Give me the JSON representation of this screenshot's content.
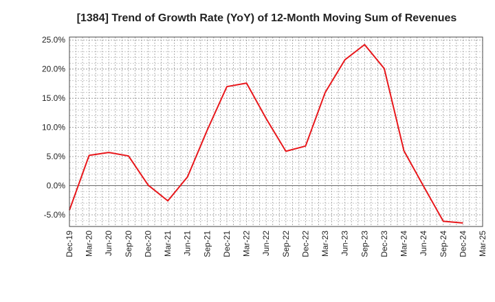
{
  "chart_data": {
    "type": "line",
    "title": "[1384]  Trend of Growth Rate (YoY) of 12-Month Moving Sum of Revenues",
    "xlabel": "",
    "ylabel": "",
    "categories": [
      "Dec-19",
      "Mar-20",
      "Jun-20",
      "Sep-20",
      "Dec-20",
      "Mar-21",
      "Jun-21",
      "Sep-21",
      "Dec-21",
      "Mar-22",
      "Jun-22",
      "Sep-22",
      "Dec-22",
      "Mar-23",
      "Jun-23",
      "Sep-23",
      "Dec-23",
      "Mar-24",
      "Jun-24",
      "Sep-24",
      "Dec-24",
      "Mar-25"
    ],
    "y_ticks": [
      "25.0%",
      "20.0%",
      "15.0%",
      "10.0%",
      "5.0%",
      "0.0%",
      "-5.0%"
    ],
    "y_tick_values": [
      25,
      20,
      15,
      10,
      5,
      0,
      -5
    ],
    "ylim": [
      -7,
      25.5
    ],
    "grid": true,
    "legend": "none",
    "series": [
      {
        "color": "#e8161a",
        "values": [
          -4.2,
          5.2,
          5.7,
          5.1,
          0.1,
          -2.6,
          1.5,
          9.5,
          17.0,
          17.6,
          11.5,
          5.9,
          6.8,
          16.0,
          21.6,
          24.2,
          20.1,
          6.0,
          -0.1,
          -6.1,
          -6.4,
          null
        ]
      }
    ],
    "zero_line": true
  }
}
